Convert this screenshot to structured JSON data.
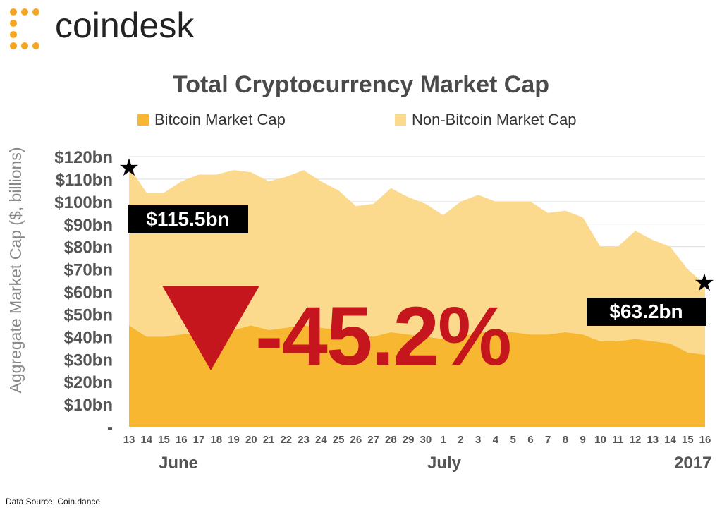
{
  "brand": {
    "name": "coindesk",
    "logo_icon": "coindesk-logo-icon",
    "color": "#f5a623"
  },
  "source_note": "Data Source: Coin.dance",
  "annotations": {
    "start_value": "$115.5bn",
    "end_value": "$63.2bn",
    "change_pct": "-45.2%",
    "arrow_color": "#c4161c"
  },
  "chart_data": {
    "type": "area",
    "stacked": true,
    "title": "Total Cryptocurrency Market Cap",
    "ylabel": "Aggregate Market Cap ($, billions)",
    "xlabel": "",
    "ylim": [
      0,
      120
    ],
    "yticks": [
      {
        "value": 0,
        "label": "-"
      },
      {
        "value": 10,
        "label": "$10bn"
      },
      {
        "value": 20,
        "label": "$20bn"
      },
      {
        "value": 30,
        "label": "$30bn"
      },
      {
        "value": 40,
        "label": "$40bn"
      },
      {
        "value": 50,
        "label": "$50bn"
      },
      {
        "value": 60,
        "label": "$60bn"
      },
      {
        "value": 70,
        "label": "$70bn"
      },
      {
        "value": 80,
        "label": "$80bn"
      },
      {
        "value": 90,
        "label": "$90bn"
      },
      {
        "value": 100,
        "label": "$100bn"
      },
      {
        "value": 110,
        "label": "$110bn"
      },
      {
        "value": 120,
        "label": "$120bn"
      }
    ],
    "grid": true,
    "legend": "top",
    "x": [
      "13",
      "14",
      "15",
      "16",
      "17",
      "18",
      "19",
      "20",
      "21",
      "22",
      "23",
      "24",
      "25",
      "26",
      "27",
      "28",
      "29",
      "30",
      "1",
      "2",
      "3",
      "4",
      "5",
      "6",
      "7",
      "8",
      "9",
      "10",
      "11",
      "12",
      "13",
      "14",
      "15",
      "16"
    ],
    "month_labels": [
      {
        "label": "June",
        "at_index": 3
      },
      {
        "label": "July",
        "at_index": 19
      },
      {
        "label": "2017",
        "at_index": 32.5
      }
    ],
    "series": [
      {
        "name": "Bitcoin Market Cap",
        "color": "#f7b731",
        "values": [
          45,
          40,
          40,
          41,
          42,
          41,
          43,
          45,
          43,
          44,
          45,
          44,
          43,
          41,
          40,
          42,
          41,
          40,
          39,
          40,
          42,
          42,
          42,
          41,
          41,
          42,
          41,
          38,
          38,
          39,
          38,
          37,
          33,
          32
        ]
      },
      {
        "name": "Non-Bitcoin Market Cap",
        "color": "#fbd98d",
        "values": [
          70.5,
          64,
          64,
          68,
          70,
          71,
          71,
          68,
          66,
          67,
          69,
          65,
          62,
          57,
          59,
          64,
          61,
          59,
          55,
          60,
          61,
          58,
          58,
          59,
          54,
          54,
          52,
          42,
          42,
          48,
          45,
          43,
          37,
          31.2
        ]
      }
    ],
    "totals": [
      115.5,
      104,
      104,
      109,
      112,
      112,
      114,
      113,
      109,
      111,
      114,
      109,
      105,
      98,
      99,
      106,
      102,
      99,
      94,
      100,
      103,
      100,
      100,
      100,
      95,
      96,
      93,
      80,
      80,
      87,
      83,
      80,
      70,
      63.2
    ]
  }
}
